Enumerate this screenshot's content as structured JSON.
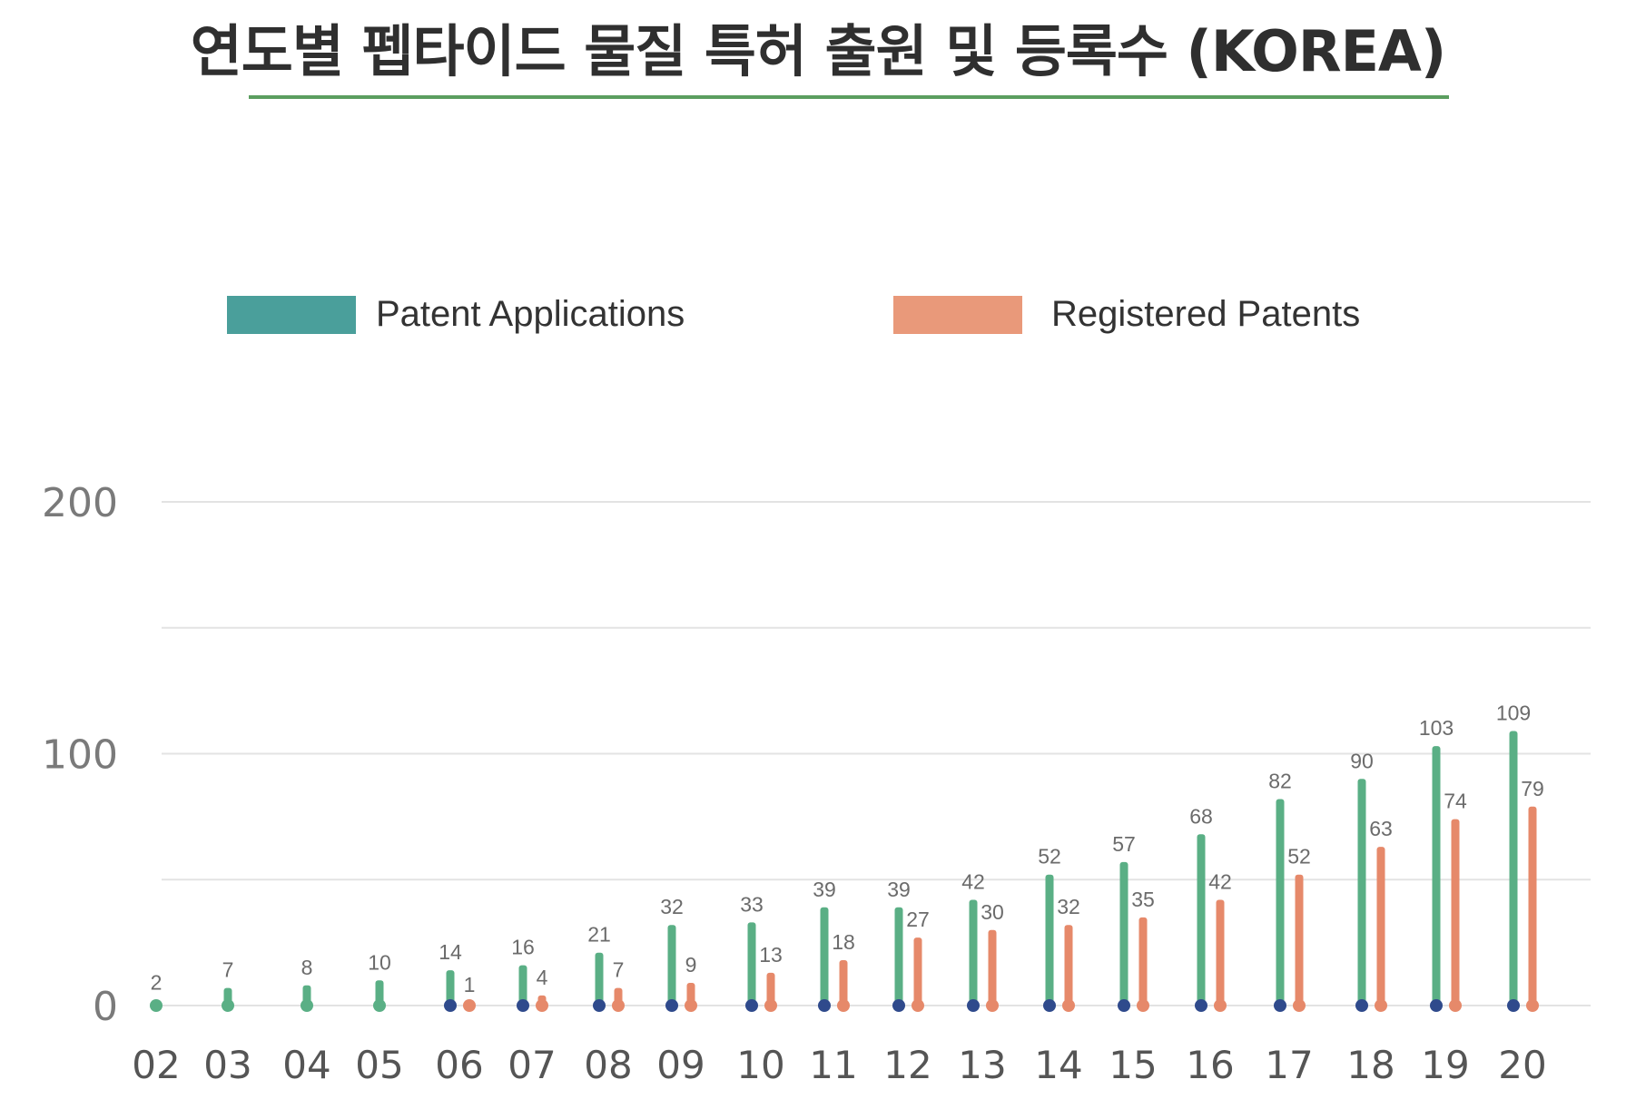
{
  "title": "연도별 펩타이드 물질 특허 출원 및 등록수 (KOREA)",
  "colors": {
    "applications": "#5aaf85",
    "applications_legend": "#4a9f9b",
    "registered": "#e6896a",
    "registered_legend": "#e9997a",
    "base_marker": "#2f4a8c",
    "title_rule": "#5b9e5f",
    "grid": "#e3e3e3"
  },
  "legend": [
    {
      "label": "Patent Applications",
      "color": "#4a9f9b"
    },
    {
      "label": "Registered Patents",
      "color": "#e9997a"
    }
  ],
  "chart_data": {
    "type": "bar",
    "title": "연도별 펩타이드 물질 특허 출원 및 등록수 (KOREA)",
    "xlabel": "",
    "ylabel": "",
    "ylim": [
      0,
      200
    ],
    "yticks": [
      "0",
      "100",
      "200"
    ],
    "grid": true,
    "legend_position": "top",
    "categories": [
      "02",
      "03",
      "04",
      "05",
      "06",
      "07",
      "08",
      "09",
      "10",
      "11",
      "12",
      "13",
      "14",
      "15",
      "16",
      "17",
      "18",
      "19",
      "20"
    ],
    "series": [
      {
        "name": "Patent Applications",
        "color": "#5aaf85",
        "values": [
          2,
          7,
          8,
          10,
          14,
          16,
          21,
          32,
          33,
          39,
          39,
          42,
          52,
          57,
          68,
          82,
          90,
          103,
          109
        ]
      },
      {
        "name": "Registered Patents",
        "color": "#e6896a",
        "values": [
          null,
          null,
          null,
          null,
          1,
          4,
          7,
          9,
          13,
          18,
          27,
          30,
          32,
          35,
          42,
          52,
          63,
          74,
          79
        ]
      }
    ]
  }
}
